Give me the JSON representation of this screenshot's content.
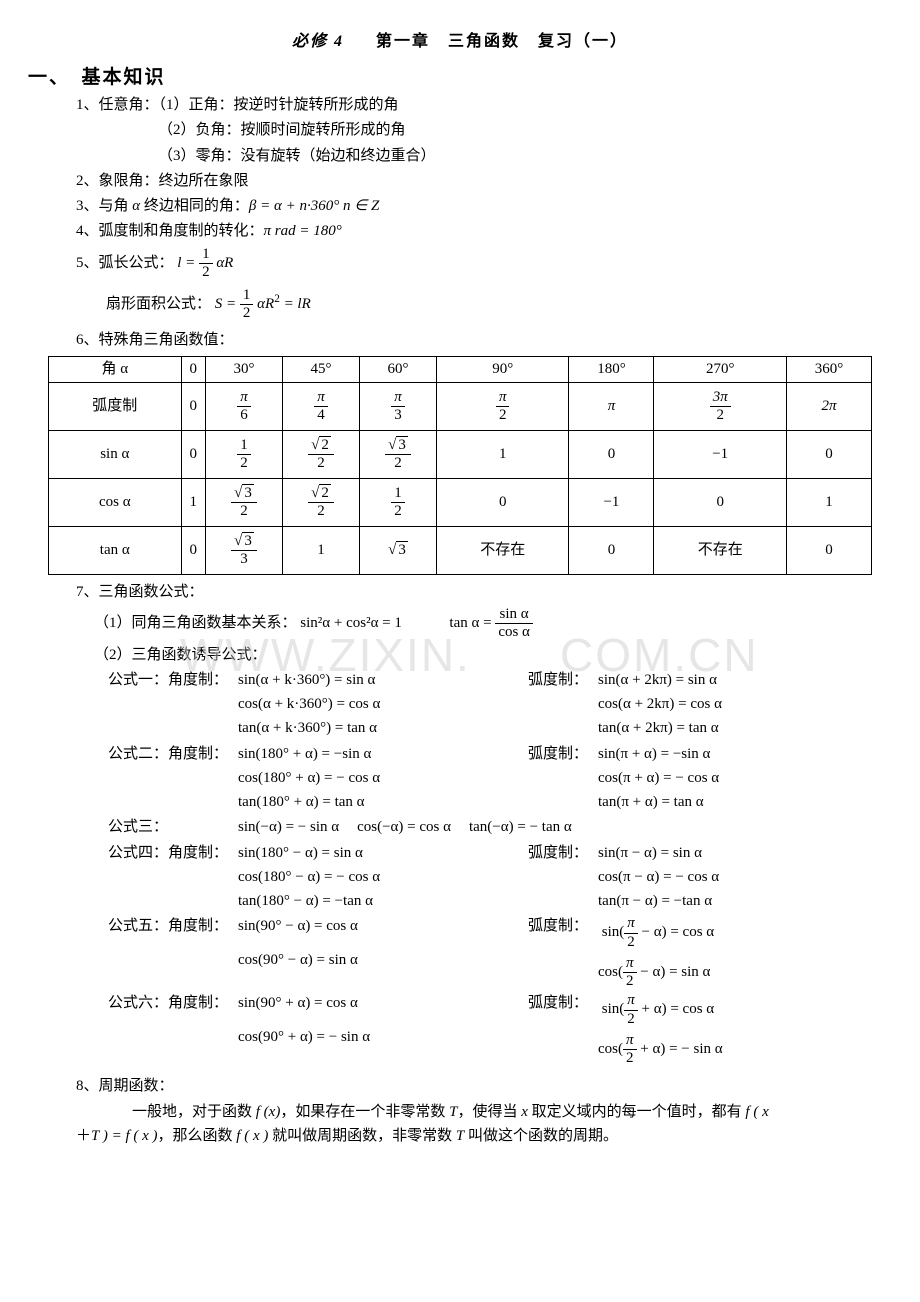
{
  "title": {
    "left_italic": "必修 4",
    "spacer": "　　",
    "rest": "第一章　三角函数　复习（一）"
  },
  "section1": "一、　基本知识",
  "p1": {
    "text": "1、任意角：（1）正角：按逆时针旋转所形成的角"
  },
  "p1b": "（2）负角：按顺时间旋转所形成的角",
  "p1c": "（3）零角：没有旋转（始边和终边重合）",
  "p2": "2、象限角：终边所在象限",
  "p3_pre": "3、与角 ",
  "p3_mid": " 终边相同的角：",
  "p3_eq": "β = α + n·360°  n ∈ Z",
  "p4_pre": "4、弧度制和角度制的转化：",
  "p4_eq": "π rad = 180°",
  "p5_pre": "5、弧长公式：",
  "p5_l": "l = ",
  "p5_half_num": "1",
  "p5_half_den": "2",
  "p5_aR": "αR",
  "p5b_pre": "扇形面积公式：",
  "p5b_S": "S = ",
  "p5b_half_num": "1",
  "p5b_half_den": "2",
  "p5b_aR2": "αR",
  "p5b_eq2": " = lR",
  "p6": "6、特殊角三角函数值：",
  "tbl": {
    "head": [
      "角 α",
      "0",
      "30°",
      "45°",
      "60°",
      "90°",
      "180°",
      "270°",
      "360°"
    ],
    "rad_label": "弧度制",
    "rad": [
      "0",
      [
        "π",
        "6"
      ],
      [
        "π",
        "4"
      ],
      [
        "π",
        "3"
      ],
      [
        "π",
        "2"
      ],
      "π",
      [
        "3π",
        "2"
      ],
      "2π"
    ],
    "sin_label": "sin α",
    "sin": [
      "0",
      [
        "1",
        "2"
      ],
      [
        [
          "√",
          "2"
        ],
        "2"
      ],
      [
        [
          "√",
          "3"
        ],
        "2"
      ],
      "1",
      "0",
      "−1",
      "0"
    ],
    "cos_label": "cos α",
    "cos": [
      "1",
      [
        [
          "√",
          "3"
        ],
        "2"
      ],
      [
        [
          "√",
          "2"
        ],
        "2"
      ],
      [
        "1",
        "2"
      ],
      "0",
      "−1",
      "0",
      "1"
    ],
    "tan_label": "tan α",
    "tan": [
      "0",
      [
        [
          "√",
          "3"
        ],
        "3"
      ],
      "1",
      [
        "√",
        "3",
        true
      ],
      "不存在",
      "0",
      "不存在",
      "0"
    ]
  },
  "p7": "7、三角函数公式：",
  "p7a_pre": "（1）同角三角函数基本关系：",
  "p7a_eq1": "sin²α + cos²α = 1",
  "p7a_tan": "tan α = ",
  "p7a_frac_num": "sin α",
  "p7a_frac_den": "cos α",
  "p7b": "（2）三角函数诱导公式：",
  "f1": {
    "lbl": "公式一：角度制：",
    "a": "sin(α + k·360°) = sin α",
    "b": "cos(α + k·360°) = cos α",
    "c": "tan(α + k·360°) = tan α",
    "rlbl": "弧度制：",
    "ra": "sin(α + 2kπ) = sin α",
    "rb": "cos(α + 2kπ) = cos α",
    "rc": "tan(α + 2kπ) = tan α"
  },
  "f2": {
    "lbl": "公式二：角度制：",
    "a": "sin(180° + α) = −sin α",
    "b": "cos(180° + α) = − cos α",
    "c": "tan(180° + α) = tan α",
    "rlbl": "弧度制：",
    "ra": "sin(π + α) = −sin α",
    "rb": "cos(π + α) = − cos α",
    "rc": "tan(π + α) = tan α"
  },
  "f3": {
    "lbl": "公式三：",
    "a": "sin(−α) = − sin α",
    "b": "cos(−α) = cos α",
    "c": "tan(−α) = − tan α"
  },
  "f4": {
    "lbl": "公式四：角度制：",
    "a": "sin(180° − α) = sin α",
    "b": "cos(180° − α) = − cos α",
    "c": "tan(180° − α) = −tan α",
    "rlbl": "弧度制：",
    "ra": "sin(π − α) = sin α",
    "rb": "cos(π − α) = − cos α",
    "rc": "tan(π − α) = −tan α"
  },
  "f5": {
    "lbl": "公式五：角度制：",
    "a": "sin(90° − α) = cos α",
    "b": "cos(90° − α) = sin α",
    "rlbl": "弧度制：",
    "raPre": "sin(",
    "raFracNum": "π",
    "raFracDen": "2",
    "raPost": " − α) = cos α",
    "rbPre": "cos(",
    "rbPost": " − α) = sin α"
  },
  "f6": {
    "lbl": "公式六：角度制：",
    "a": "sin(90° + α) = cos α",
    "b": "cos(90° + α) = − sin α",
    "rlbl": "弧度制：",
    "raPre": "sin(",
    "raFracNum": "π",
    "raFracDen": "2",
    "raPost": " + α) = cos α",
    "rbPre": "cos(",
    "rbPost": " + α) = − sin α"
  },
  "p8": "8、周期函数：",
  "p8body_a": "一般地，对于函数 ",
  "p8body_fx": "f (x)",
  "p8body_b": "，如果存在一个非零常数 ",
  "p8body_T": "T",
  "p8body_c": "，使得当 ",
  "p8body_x": "x",
  "p8body_d": " 取定义域内的每一个值时，都有 ",
  "p8body_e": "f ( x",
  "p8body_line2a": "＋",
  "p8body_line2b": "T ) = f ( x )",
  "p8body_line2c": "，那么函数 ",
  "p8body_line2d": "f ( x )",
  "p8body_line2e": " 就叫做周期函数，非零常数 ",
  "p8body_line2f": "T",
  "p8body_line2g": " 叫做这个函数的周期。",
  "wm1": "WWW.ZIXIN.",
  "wm2": "COM.CN"
}
